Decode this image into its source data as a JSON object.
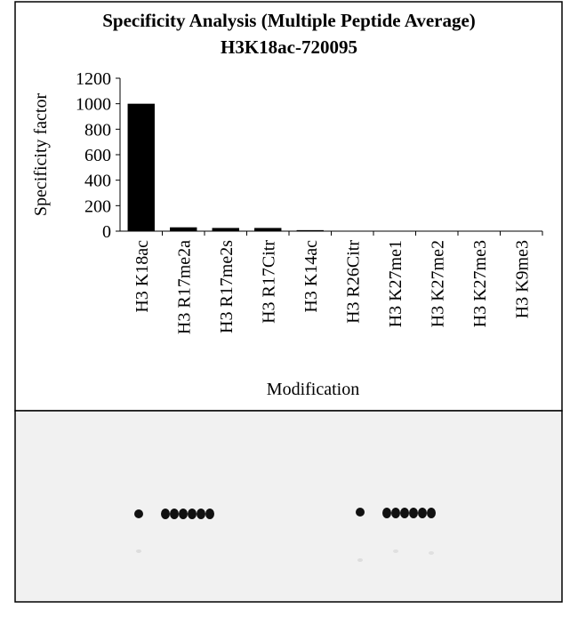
{
  "chart_data": {
    "type": "bar",
    "title": "Specificity Analysis  (Multiple Peptide Average)",
    "subtitle": "H3K18ac-720095",
    "y_label": "Specificity factor",
    "x_label": "Modification",
    "categories": [
      "H3 K18ac",
      "H3 R17me2a",
      "H3 R17me2s",
      "H3 R17Citr",
      "H3 K14ac",
      "H3 R26Citr",
      "H3 K27me1",
      "H3 K27me2",
      "H3 K27me3",
      "H3 K9me3"
    ],
    "values": [
      1000,
      30,
      25,
      25,
      8,
      1,
      1,
      1,
      1,
      1
    ],
    "color": "#000000",
    "ylim": [
      0,
      1200
    ],
    "yticks": [
      0,
      200,
      400,
      600,
      800,
      1000,
      1200
    ],
    "grid": false
  }
}
